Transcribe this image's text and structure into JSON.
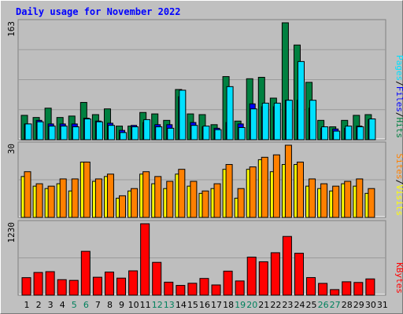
{
  "title": "Daily usage for November 2022",
  "colors": {
    "background": "#c0c0c0",
    "panel": "#bebebe",
    "hits": "#008040",
    "files": "#0000ff",
    "pages": "#00e0ff",
    "visits": "#ffff00",
    "sites": "#ff8000",
    "kbytes": "#ff0000",
    "title": "#0000ff",
    "weekend_day": "#00805c",
    "weekday_day": "#000000"
  },
  "chart_data": [
    {
      "type": "bar",
      "name": "hits-files-pages",
      "scale_max": 163,
      "scale_label": "163",
      "right_label": [
        "Pages",
        "Files",
        "Hits"
      ],
      "x": [
        1,
        2,
        3,
        4,
        5,
        6,
        7,
        8,
        9,
        10,
        11,
        12,
        13,
        14,
        15,
        16,
        17,
        18,
        19,
        20,
        21,
        22,
        23,
        24,
        25,
        26,
        27,
        28,
        29,
        30,
        31
      ],
      "series": [
        {
          "name": "Hits",
          "values": [
            34,
            31,
            44,
            31,
            33,
            52,
            35,
            43,
            19,
            19,
            38,
            36,
            27,
            70,
            36,
            35,
            21,
            88,
            26,
            85,
            87,
            58,
            163,
            132,
            80,
            27,
            18,
            27,
            34,
            35,
            0
          ]
        },
        {
          "name": "Files",
          "values": [
            22,
            27,
            22,
            22,
            22,
            30,
            26,
            23,
            13,
            20,
            24,
            21,
            21,
            60,
            24,
            18,
            16,
            24,
            22,
            50,
            46,
            46,
            55,
            55,
            44,
            16,
            15,
            16,
            19,
            28,
            0
          ]
        },
        {
          "name": "Pages",
          "values": [
            22,
            25,
            19,
            19,
            18,
            29,
            25,
            20,
            10,
            18,
            28,
            18,
            16,
            69,
            20,
            19,
            14,
            74,
            17,
            43,
            51,
            51,
            55,
            109,
            55,
            18,
            12,
            19,
            18,
            29,
            0
          ]
        }
      ]
    },
    {
      "type": "bar",
      "name": "visits-sites",
      "scale_max": 30,
      "scale_label": "30",
      "right_label": [
        "Sites",
        "Visits"
      ],
      "x": [
        1,
        2,
        3,
        4,
        5,
        6,
        7,
        8,
        9,
        10,
        11,
        12,
        13,
        14,
        15,
        16,
        17,
        18,
        19,
        20,
        21,
        22,
        23,
        24,
        25,
        26,
        27,
        28,
        29,
        30,
        31
      ],
      "series": [
        {
          "name": "Visits",
          "values": [
            17,
            13,
            12,
            14,
            11,
            23,
            15,
            17,
            8,
            11,
            18,
            14,
            12,
            18,
            13,
            10,
            12,
            20,
            8,
            20,
            24,
            19,
            22,
            22,
            13,
            12,
            11,
            14,
            13,
            10,
            0
          ]
        },
        {
          "name": "Sites",
          "values": [
            19,
            14,
            13,
            16,
            16,
            23,
            16,
            18,
            9,
            12,
            19,
            17,
            15,
            20,
            15,
            11,
            14,
            22,
            12,
            21,
            25,
            26,
            30,
            23,
            16,
            14,
            13,
            15,
            16,
            12,
            0
          ]
        }
      ]
    },
    {
      "type": "bar",
      "name": "kbytes",
      "scale_max": 1230,
      "scale_label": "1230",
      "right_label": [
        "KBytes"
      ],
      "x": [
        1,
        2,
        3,
        4,
        5,
        6,
        7,
        8,
        9,
        10,
        11,
        12,
        13,
        14,
        15,
        16,
        17,
        18,
        19,
        20,
        21,
        22,
        23,
        24,
        25,
        26,
        27,
        28,
        29,
        30,
        31
      ],
      "series": [
        {
          "name": "KBytes",
          "values": [
            302,
            391,
            405,
            267,
            255,
            755,
            309,
            398,
            294,
            419,
            1230,
            565,
            224,
            168,
            205,
            288,
            176,
            414,
            245,
            655,
            575,
            731,
            1011,
            722,
            303,
            203,
            96,
            231,
            219,
            280,
            0
          ]
        }
      ]
    }
  ],
  "days": [
    "1",
    "2",
    "3",
    "4",
    "5",
    "6",
    "7",
    "8",
    "9",
    "10",
    "11",
    "12",
    "13",
    "14",
    "15",
    "16",
    "17",
    "18",
    "19",
    "20",
    "21",
    "22",
    "23",
    "24",
    "25",
    "26",
    "27",
    "28",
    "29",
    "30",
    "31"
  ],
  "weekend_days": [
    5,
    6,
    12,
    13,
    19,
    20,
    26,
    27
  ]
}
